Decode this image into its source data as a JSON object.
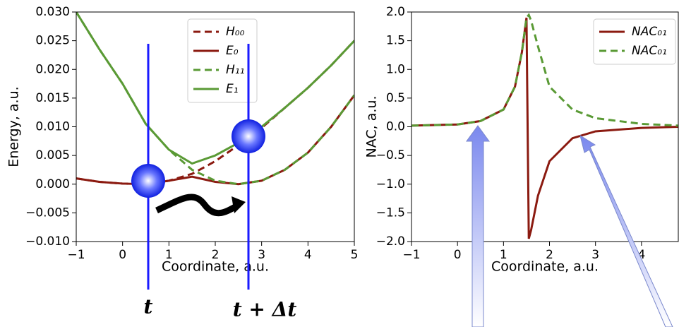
{
  "chart_data": [
    {
      "type": "line",
      "xlabel": "Coordinate, a.u.",
      "ylabel": "Energy, a.u.",
      "x": [
        -1,
        -0.5,
        0,
        0.5,
        1,
        1.5,
        2,
        2.5,
        3,
        3.5,
        4,
        4.5,
        5
      ],
      "series": [
        {
          "name": "H₀₀",
          "color": "#8b1a10",
          "style": "dashed",
          "values": [
            0.001,
            0.0004,
            0.0001,
            0.0,
            0.0006,
            0.0018,
            0.004,
            0.0068,
            0.0098,
            0.0133,
            0.0168,
            0.0207,
            0.025
          ]
        },
        {
          "name": "E₀",
          "color": "#8b1a10",
          "style": "solid",
          "values": [
            0.001,
            0.0004,
            0.0001,
            0.0,
            0.0006,
            0.0013,
            0.0004,
            0.0,
            0.0006,
            0.0025,
            0.0055,
            0.01,
            0.0155
          ]
        },
        {
          "name": "H₁₁",
          "color": "#5a9a35",
          "style": "dashed",
          "values": [
            0.03,
            0.0235,
            0.0175,
            0.0105,
            0.006,
            0.0025,
            0.0006,
            0.0,
            0.0006,
            0.0025,
            0.0055,
            0.01,
            0.0155
          ]
        },
        {
          "name": "E₁",
          "color": "#5a9a35",
          "style": "solid",
          "values": [
            0.03,
            0.0235,
            0.0175,
            0.0105,
            0.006,
            0.0036,
            0.005,
            0.0072,
            0.01,
            0.0133,
            0.0168,
            0.0207,
            0.025
          ]
        }
      ],
      "xlim": [
        -1,
        5
      ],
      "ylim": [
        -0.01,
        0.03
      ],
      "xticks": [
        {
          "value": -1,
          "label": "−1"
        },
        0,
        1,
        2,
        3,
        4,
        5
      ],
      "yticks": [
        {
          "value": -0.01,
          "label": "−0.010"
        },
        {
          "value": -0.005,
          "label": "−0.005"
        },
        {
          "value": 0,
          "label": "0.000"
        },
        {
          "value": 0.005,
          "label": "0.005"
        },
        {
          "value": 0.01,
          "label": "0.010"
        },
        {
          "value": 0.015,
          "label": "0.015"
        },
        {
          "value": 0.02,
          "label": "0.020"
        },
        {
          "value": 0.025,
          "label": "0.025"
        },
        {
          "value": 0.03,
          "label": "0.030"
        }
      ],
      "legend": "upper center",
      "annotations": [
        "t",
        "t + Δt"
      ]
    },
    {
      "type": "line",
      "xlabel": "Coordinate, a.u.",
      "ylabel": "NAC, a.u.",
      "x": [
        -1,
        0,
        0.5,
        1,
        1.25,
        1.4,
        1.5,
        1.55,
        1.6,
        1.75,
        2,
        2.5,
        3,
        4,
        4.8
      ],
      "series": [
        {
          "name": "NAC₀₁",
          "color": "#8b1a10",
          "style": "solid",
          "values": [
            0.02,
            0.04,
            0.1,
            0.3,
            0.7,
            1.3,
            1.9,
            -1.95,
            -1.8,
            -1.2,
            -0.6,
            -0.2,
            -0.08,
            -0.02,
            0.0
          ]
        },
        {
          "name": "NAC₀₁",
          "color": "#5a9a35",
          "style": "dashed",
          "values": [
            0.02,
            0.04,
            0.1,
            0.3,
            0.7,
            1.3,
            1.9,
            1.95,
            1.85,
            1.4,
            0.7,
            0.3,
            0.15,
            0.05,
            0.02
          ]
        }
      ],
      "xlim": [
        -1,
        4.8
      ],
      "ylim": [
        -2,
        2
      ],
      "xticks": [
        {
          "value": -1,
          "label": "−1"
        },
        0,
        1,
        2,
        3,
        4
      ],
      "yticks": [
        {
          "value": -2,
          "label": "−2.0"
        },
        {
          "value": -1.5,
          "label": "−1.5"
        },
        {
          "value": -1,
          "label": "−1.0"
        },
        {
          "value": -0.5,
          "label": "−0.5"
        },
        {
          "value": 0,
          "label": "0.0"
        },
        {
          "value": 0.5,
          "label": "0.5"
        },
        {
          "value": 1,
          "label": "1.0"
        },
        {
          "value": 1.5,
          "label": "1.5"
        },
        {
          "value": 2,
          "label": "2.0"
        }
      ],
      "legend": "upper right"
    }
  ]
}
